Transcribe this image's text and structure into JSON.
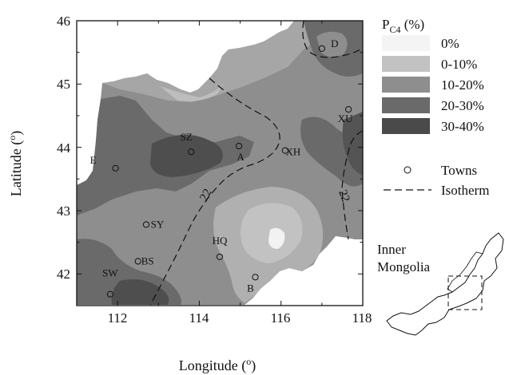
{
  "figure": {
    "x_axis": {
      "title_base": "Longitude (",
      "title_sup": "o",
      "title_end": ")",
      "ticks": [
        "112",
        "114",
        "116",
        "118"
      ]
    },
    "y_axis": {
      "title_base": "Latitude (",
      "title_sup": "o",
      "title_end": ")",
      "ticks": [
        "42",
        "43",
        "44",
        "45",
        "46"
      ]
    },
    "towns": [
      {
        "code": "D",
        "lon": 117.0,
        "lat": 45.56
      },
      {
        "code": "XU",
        "lon": 117.65,
        "lat": 44.6
      },
      {
        "code": "SZ",
        "lon": 113.8,
        "lat": 43.93
      },
      {
        "code": "A",
        "lon": 114.97,
        "lat": 44.02
      },
      {
        "code": "XH",
        "lon": 116.1,
        "lat": 43.95
      },
      {
        "code": "E",
        "lon": 111.95,
        "lat": 43.67
      },
      {
        "code": "SY",
        "lon": 112.7,
        "lat": 42.78
      },
      {
        "code": "HQ",
        "lon": 114.5,
        "lat": 42.27
      },
      {
        "code": "BS",
        "lon": 112.5,
        "lat": 42.2
      },
      {
        "code": "SW",
        "lon": 111.82,
        "lat": 41.68
      },
      {
        "code": "B",
        "lon": 115.37,
        "lat": 41.95
      }
    ],
    "isotherm_labels": [
      "22",
      "22"
    ],
    "legend": {
      "title_base": "P",
      "title_sub": "C4",
      "title_unit": " (%)",
      "classes": [
        {
          "label": "0%",
          "color": "#f4f4f4"
        },
        {
          "label": "0-10%",
          "color": "#c2c2c2"
        },
        {
          "label": "10-20%",
          "color": "#8e8e8e"
        },
        {
          "label": "20-30%",
          "color": "#6a6a6a"
        },
        {
          "label": "30-40%",
          "color": "#4a4a4a"
        }
      ],
      "towns_label": "Towns",
      "isotherm_label": "Isotherm"
    },
    "inset": {
      "line1": "Inner",
      "line2": "Mongolia"
    }
  },
  "chart_data": {
    "type": "map",
    "variable": "P C4 (%)",
    "x_range": [
      111,
      118
    ],
    "y_range": [
      41.5,
      46
    ],
    "classes": [
      "0%",
      "0-10%",
      "10-20%",
      "20-30%",
      "30-40%"
    ]
  }
}
